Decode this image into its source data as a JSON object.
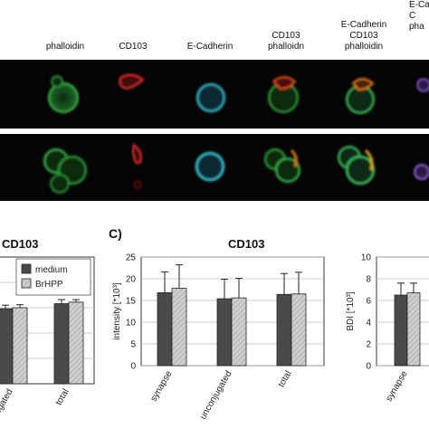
{
  "header_labels": [
    "phalloidin",
    "CD103",
    "E-Cadherin",
    "CD103\nphalloidn",
    "E-Cadherin\nCD103\nphalloidin",
    "E-Ca\nC\npha"
  ],
  "colors": {
    "green": "#2e9d3a",
    "red": "#d42a2a",
    "cyan": "#2bb5c8",
    "orange": "#d8781e",
    "purple": "#7a4fb8",
    "medium_bar": "#4a4a4a",
    "brhpp_bar": "#cfcfcf"
  },
  "panel_c_letter": "C)",
  "chart_data": [
    {
      "type": "bar",
      "title": "CD103",
      "categories": [
        "ugated",
        "total"
      ],
      "series": [
        {
          "name": "medium",
          "values": [
            14.8,
            15.8
          ],
          "errors": [
            0.7,
            0.8
          ]
        },
        {
          "name": "BrHPP",
          "values": [
            15.0,
            16.1
          ],
          "errors": [
            0.6,
            0.5
          ]
        }
      ],
      "legend": "top-right"
    },
    {
      "type": "bar",
      "title": "CD103",
      "ylabel": "intensity [*10³]",
      "ylim": [
        0,
        25
      ],
      "yticks": [
        "0",
        "5",
        "10",
        "15",
        "20",
        "25"
      ],
      "categories": [
        "synapse",
        "unconjugated",
        "total"
      ],
      "series": [
        {
          "values": [
            16.8,
            15.4,
            16.4
          ],
          "errors": [
            4.8,
            4.5,
            4.8
          ]
        },
        {
          "values": [
            17.8,
            15.6,
            16.5
          ],
          "errors": [
            5.4,
            4.5,
            5.0
          ]
        }
      ]
    },
    {
      "type": "bar",
      "ylabel": "BDI [*10³]",
      "ylim": [
        0,
        10
      ],
      "yticks": [
        "0",
        "2",
        "4",
        "6",
        "8",
        "10"
      ],
      "categories": [
        "synapse"
      ],
      "series": [
        {
          "values": [
            6.5
          ],
          "errors": [
            1.1
          ]
        },
        {
          "values": [
            6.7
          ],
          "errors": [
            0.9
          ]
        }
      ]
    }
  ]
}
